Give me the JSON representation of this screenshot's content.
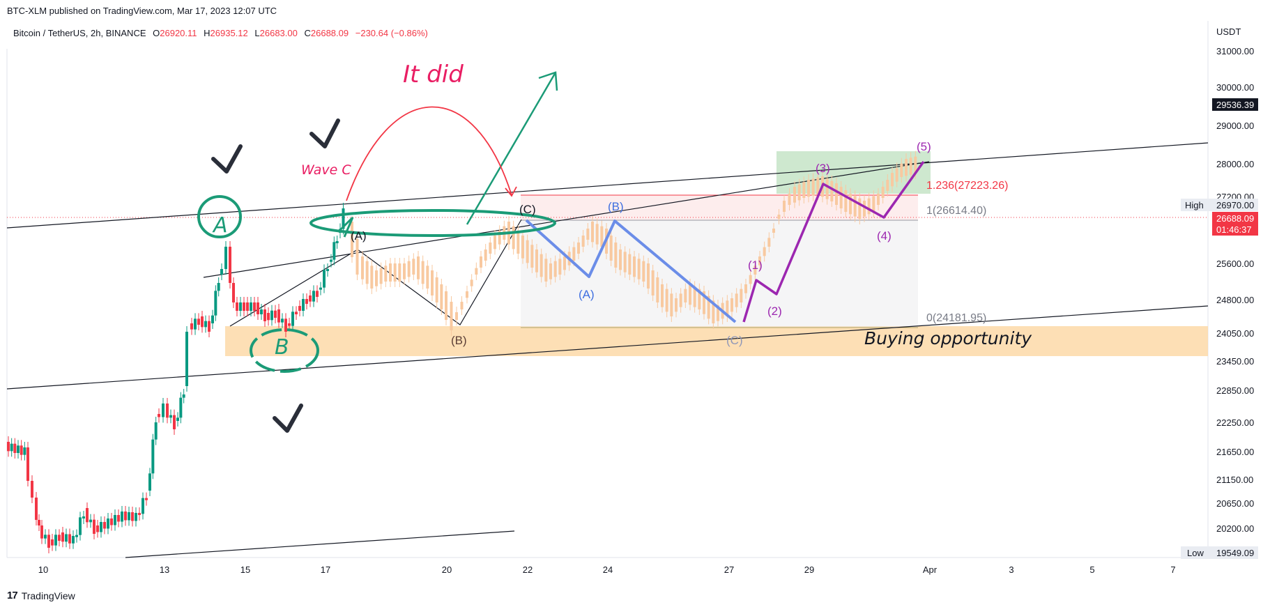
{
  "header": {
    "published": "BTC-XLM published on TradingView.com, Mar 17, 2023 12:07 UTC",
    "symbol": "Bitcoin / TetherUS, 2h, BINANCE",
    "open_label": "O",
    "open": "26920.11",
    "high_label": "H",
    "high": "26935.12",
    "low_label": "L",
    "low": "26683.00",
    "close_label": "C",
    "close": "26688.09",
    "change": "−230.64 (−0.86%)"
  },
  "footer": {
    "brand": "TradingView",
    "logo": "17"
  },
  "chart_data": {
    "type": "candlestick",
    "y_unit": "USDT",
    "y_ticks": [
      "31000.00",
      "30000.00",
      "29000.00",
      "28000.00",
      "27200.00",
      "25600.00",
      "24800.00",
      "24050.00",
      "23450.00",
      "22850.00",
      "22250.00",
      "21650.00",
      "21150.00",
      "20650.00",
      "20200.00"
    ],
    "x_ticks": [
      "10",
      "13",
      "15",
      "17",
      "20",
      "22",
      "24",
      "27",
      "29",
      "Apr",
      "3",
      "5",
      "7"
    ],
    "price_tags": {
      "crosshair": "29536.39",
      "high_label": "High",
      "high": "26970.00",
      "last": "26688.09",
      "countdown": "01:46:37",
      "low_label": "Low",
      "low": "19549.09"
    },
    "fib_levels": [
      {
        "label": "1.236(27223.26)",
        "value": 27223.26,
        "color": "#f23645"
      },
      {
        "label": "1(26614.40)",
        "value": 26614.4,
        "color": "#787b86"
      },
      {
        "label": "0(24181.95)",
        "value": 24181.95,
        "color": "#787b86"
      }
    ],
    "annotations": {
      "it_did": "It did",
      "wave_c": "Wave C",
      "buying": "Buying opportunity",
      "A_green": "A",
      "B_green": "B",
      "wave_black": [
        "(A)",
        "(B)",
        "(C)"
      ],
      "wave_blue": [
        "(A)",
        "(B)",
        "(C)"
      ],
      "wave_purple": [
        "(1)",
        "(2)",
        "(3)",
        "(4)",
        "(5)"
      ]
    },
    "colors": {
      "up": "#089981",
      "down": "#f23645",
      "green": "#1b9b77",
      "blue": "#6b8de8",
      "purple": "#9c27b0",
      "zone": "#fdd9a8",
      "target": "#a5d6a7"
    }
  }
}
